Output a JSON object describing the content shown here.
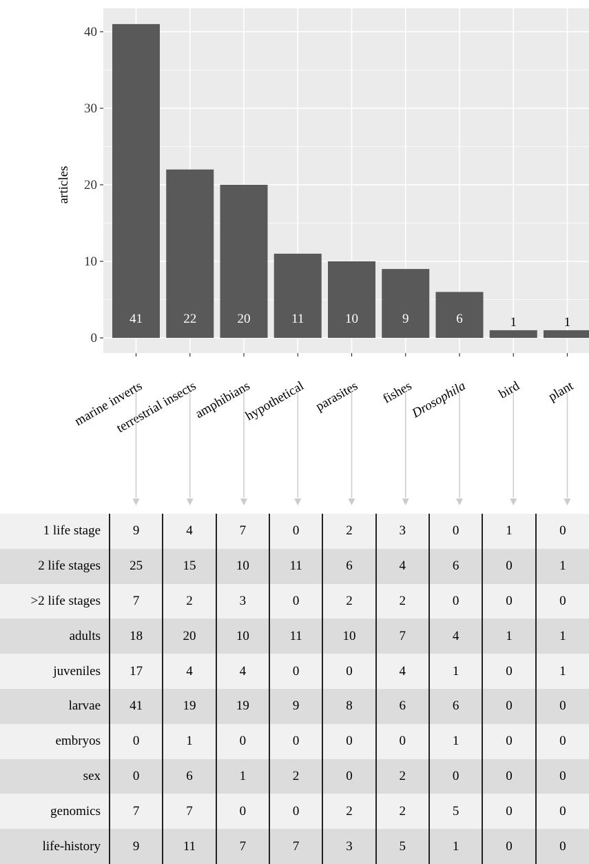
{
  "chart_data": {
    "type": "bar",
    "ylabel": "articles",
    "xlabel": "",
    "ylim": [
      0,
      42.5
    ],
    "yticks": [
      0,
      10,
      20,
      30,
      40
    ],
    "grid": true,
    "categories": [
      "marine inverts",
      "terrestrial insects",
      "amphibians",
      "hypothetical",
      "parasites",
      "fishes",
      "Drosophila",
      "bird",
      "plant"
    ],
    "italic_categories": [
      "Drosophila"
    ],
    "values": [
      41,
      22,
      20,
      11,
      10,
      9,
      6,
      1,
      1
    ],
    "data_labels": [
      "41",
      "22",
      "20",
      "11",
      "10",
      "9",
      "6",
      "1",
      "1"
    ],
    "colors": {
      "panel": "#ebebeb",
      "bar": "#595959",
      "grid": "#ffffff",
      "bar_label_inside": "#ffffff",
      "bar_label_outside": "#000000",
      "arrow": "#cccccc"
    }
  },
  "table": {
    "rows": [
      {
        "label": "1 life stage",
        "values": [
          "9",
          "4",
          "7",
          "0",
          "2",
          "3",
          "0",
          "1",
          "0"
        ]
      },
      {
        "label": "2 life stages",
        "values": [
          "25",
          "15",
          "10",
          "11",
          "6",
          "4",
          "6",
          "0",
          "1"
        ]
      },
      {
        "label": ">2 life stages",
        "values": [
          "7",
          "2",
          "3",
          "0",
          "2",
          "2",
          "0",
          "0",
          "0"
        ]
      },
      {
        "label": "adults",
        "values": [
          "18",
          "20",
          "10",
          "11",
          "10",
          "7",
          "4",
          "1",
          "1"
        ]
      },
      {
        "label": "juveniles",
        "values": [
          "17",
          "4",
          "4",
          "0",
          "0",
          "4",
          "1",
          "0",
          "1"
        ]
      },
      {
        "label": "larvae",
        "values": [
          "41",
          "19",
          "19",
          "9",
          "8",
          "6",
          "6",
          "0",
          "0"
        ]
      },
      {
        "label": "embryos",
        "values": [
          "0",
          "1",
          "0",
          "0",
          "0",
          "0",
          "1",
          "0",
          "0"
        ]
      },
      {
        "label": "sex",
        "values": [
          "0",
          "6",
          "1",
          "2",
          "0",
          "2",
          "0",
          "0",
          "0"
        ]
      },
      {
        "label": "genomics",
        "values": [
          "7",
          "7",
          "0",
          "0",
          "2",
          "2",
          "5",
          "0",
          "0"
        ]
      },
      {
        "label": "life-history",
        "values": [
          "9",
          "11",
          "7",
          "7",
          "3",
          "5",
          "1",
          "0",
          "0"
        ]
      }
    ]
  }
}
